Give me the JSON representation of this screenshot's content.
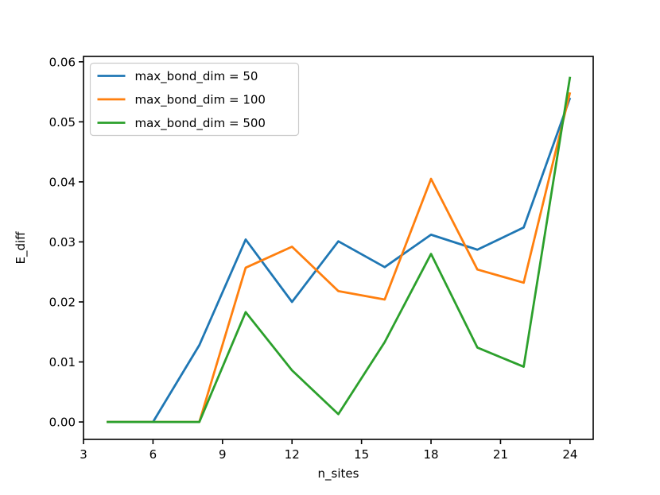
{
  "chart_data": {
    "type": "line",
    "title": "",
    "xlabel": "n_sites",
    "ylabel": "E_diff",
    "x": [
      4,
      6,
      8,
      10,
      12,
      14,
      16,
      18,
      20,
      22,
      24
    ],
    "series": [
      {
        "name": "max_bond_dim = 50",
        "color": "#1f77b4",
        "values": [
          0.0,
          0.0,
          0.0128,
          0.0304,
          0.02,
          0.0301,
          0.0258,
          0.0312,
          0.0287,
          0.0324,
          0.054
        ]
      },
      {
        "name": "max_bond_dim = 100",
        "color": "#ff7f0e",
        "values": [
          0.0,
          0.0,
          0.0,
          0.0257,
          0.0292,
          0.0218,
          0.0204,
          0.0405,
          0.0254,
          0.0232,
          0.0549
        ]
      },
      {
        "name": "max_bond_dim = 500",
        "color": "#2ca02c",
        "values": [
          0.0,
          0.0,
          0.0,
          0.0183,
          0.0086,
          0.0013,
          0.0133,
          0.028,
          0.0124,
          0.0092,
          0.0575
        ]
      }
    ],
    "xlim": [
      3,
      25
    ],
    "ylim": [
      -0.0029,
      0.0609
    ],
    "xticks": [
      3,
      6,
      9,
      12,
      15,
      18,
      21,
      24
    ],
    "yticks": [
      0.0,
      0.01,
      0.02,
      0.03,
      0.04,
      0.05,
      0.06
    ],
    "ytick_decimals": 2,
    "grid": false,
    "legend_position": "upper left",
    "axis_color": "#000000",
    "background_color": "#ffffff",
    "legend_border_color": "#cccccc",
    "line_width": 2.8
  }
}
